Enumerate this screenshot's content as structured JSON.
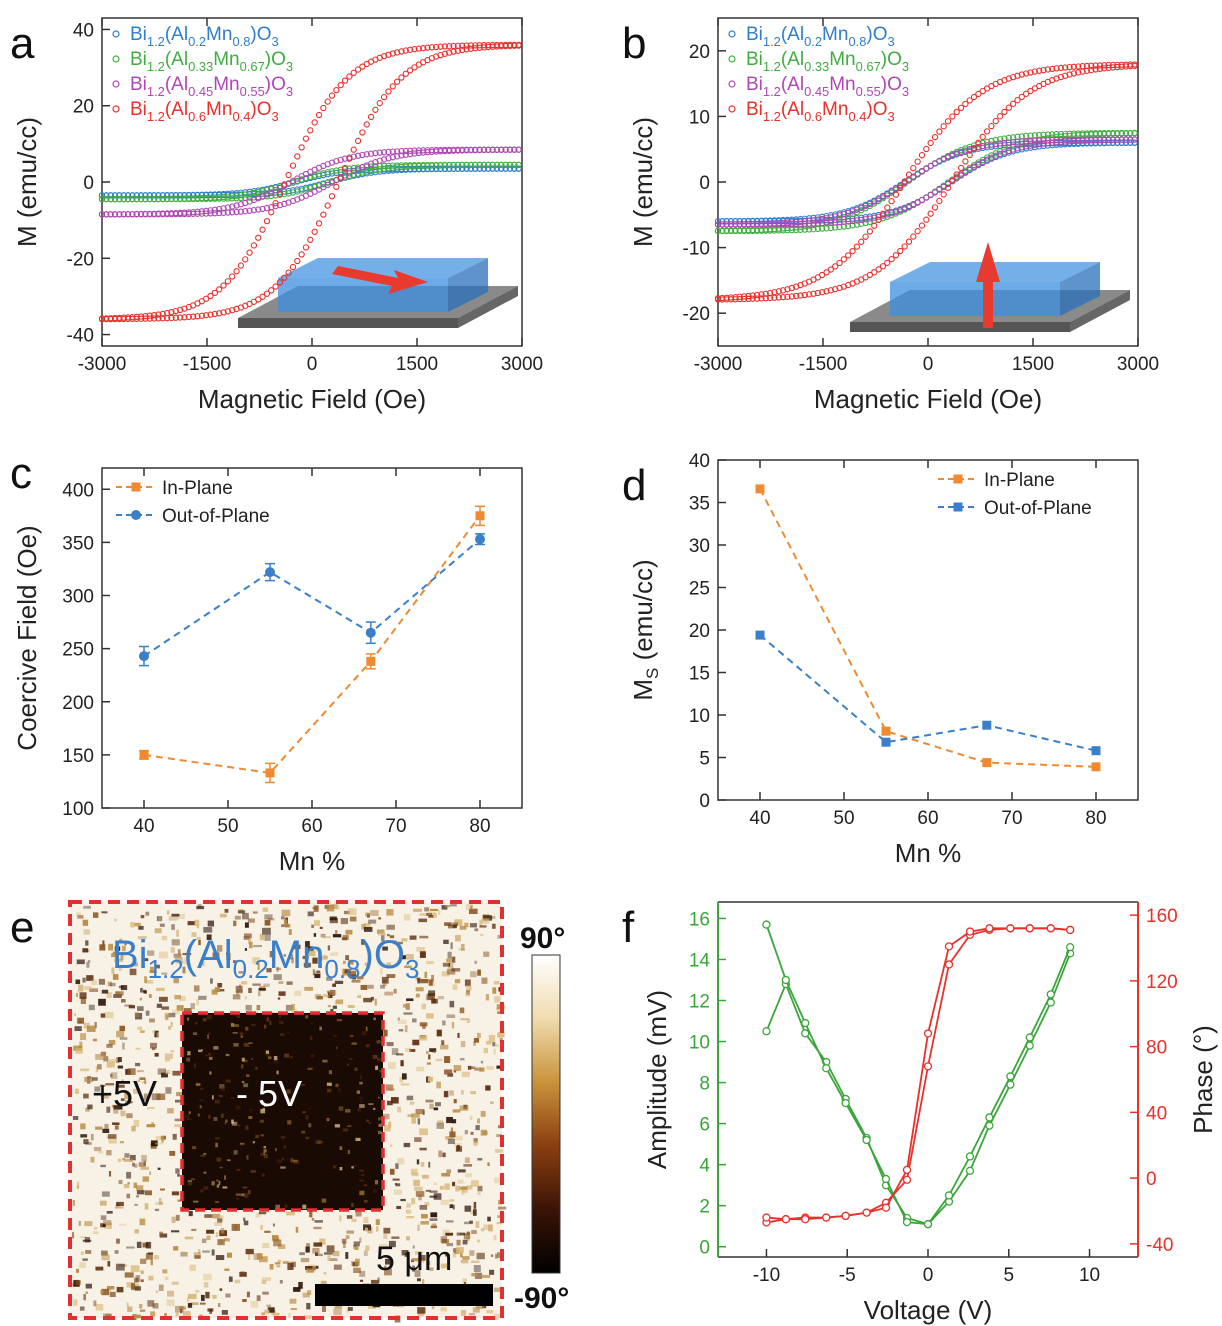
{
  "figure": {
    "panel_letters": [
      "a",
      "b",
      "c",
      "d",
      "e",
      "f"
    ]
  },
  "colors": {
    "blue": "#2f7ec9",
    "green": "#3fae3f",
    "purple": "#b046b5",
    "red": "#e8302c",
    "orange": "#f08a30",
    "blue_line": "#3a7fc8",
    "amp_green": "#3aa63a",
    "phase_red": "#e8302c",
    "box_blue": "#3b8de0",
    "substrate": "#555555"
  },
  "chart_data": [
    {
      "panel": "a",
      "type": "scatter",
      "xlabel": "Magnetic Field (Oe)",
      "ylabel": "M (emu/cc)",
      "xlim": [
        -3000,
        3000
      ],
      "ylim": [
        -43,
        43
      ],
      "xticks": [
        -3000,
        -1500,
        0,
        1500,
        3000
      ],
      "yticks": [
        -40,
        -20,
        0,
        20,
        40
      ],
      "legend": [
        {
          "base": "Bi",
          "sub1": "1.2",
          "mid1": "(Al",
          "sub2": "0.2",
          "mid2": "Mn",
          "sub3": "0.8",
          "mid3": ")O",
          "sub4": "3",
          "color": "blue"
        },
        {
          "base": "Bi",
          "sub1": "1.2",
          "mid1": "(Al",
          "sub2": "0.33",
          "mid2": "Mn",
          "sub3": "0.67",
          "mid3": ")O",
          "sub4": "3",
          "color": "green"
        },
        {
          "base": "Bi",
          "sub1": "1.2",
          "mid1": "(Al",
          "sub2": "0.45",
          "mid2": "Mn",
          "sub3": "0.55",
          "mid3": ")O",
          "sub4": "3",
          "color": "purple"
        },
        {
          "base": "Bi",
          "sub1": "1.2",
          "mid1": "(Al",
          "sub2": "0.6",
          "mid2": "Mn",
          "sub3": "0.4",
          "mid3": ")O",
          "sub4": "3",
          "color": "red"
        }
      ],
      "series": [
        {
          "color": "blue",
          "ms": 3.5,
          "hc": 240,
          "w": 700
        },
        {
          "color": "green",
          "ms": 4.5,
          "hc": 260,
          "w": 750
        },
        {
          "color": "purple",
          "ms": 8.5,
          "hc": 300,
          "w": 850
        },
        {
          "color": "red",
          "ms": 36,
          "hc": 380,
          "w": 900
        }
      ],
      "inset": {
        "arrow": "in-plane"
      }
    },
    {
      "panel": "b",
      "type": "scatter",
      "xlabel": "Magnetic Field (Oe)",
      "ylabel": "M (emu/cc)",
      "xlim": [
        -3000,
        3000
      ],
      "ylim": [
        -25,
        25
      ],
      "xticks": [
        -3000,
        -1500,
        0,
        1500,
        3000
      ],
      "yticks": [
        -20,
        -10,
        0,
        10,
        20
      ],
      "legend": [
        {
          "base": "Bi",
          "sub1": "1.2",
          "mid1": "(Al",
          "sub2": "0.2",
          "mid2": "Mn",
          "sub3": "0.8",
          "mid3": ")O",
          "sub4": "3",
          "color": "blue"
        },
        {
          "base": "Bi",
          "sub1": "1.2",
          "mid1": "(Al",
          "sub2": "0.33",
          "mid2": "Mn",
          "sub3": "0.67",
          "mid3": ")O",
          "sub4": "3",
          "color": "green"
        },
        {
          "base": "Bi",
          "sub1": "1.2",
          "mid1": "(Al",
          "sub2": "0.45",
          "mid2": "Mn",
          "sub3": "0.55",
          "mid3": ")O",
          "sub4": "3",
          "color": "purple"
        },
        {
          "base": "Bi",
          "sub1": "1.2",
          "mid1": "(Al",
          "sub2": "0.6",
          "mid2": "Mn",
          "sub3": "0.4",
          "mid3": ")O",
          "sub4": "3",
          "color": "red"
        }
      ],
      "series": [
        {
          "color": "blue",
          "ms": 6,
          "hc": 330,
          "w": 850
        },
        {
          "color": "green",
          "ms": 7.5,
          "hc": 300,
          "w": 1000
        },
        {
          "color": "purple",
          "ms": 6.5,
          "hc": 320,
          "w": 900
        },
        {
          "color": "red",
          "ms": 18,
          "hc": 340,
          "w": 1100
        }
      ],
      "inset": {
        "arrow": "out-of-plane"
      }
    },
    {
      "panel": "c",
      "type": "line",
      "xlabel": "Mn %",
      "ylabel": "Coercive Field (Oe)",
      "xlim": [
        35,
        85
      ],
      "ylim": [
        100,
        420
      ],
      "xticks": [
        40,
        50,
        60,
        70,
        80
      ],
      "yticks": [
        100,
        150,
        200,
        250,
        300,
        350,
        400
      ],
      "legend_position": "top-left",
      "series": [
        {
          "name": "In-Plane",
          "color": "orange",
          "marker": "square",
          "x": [
            40,
            55,
            67,
            80
          ],
          "y": [
            150,
            133,
            238,
            375
          ],
          "err": [
            4,
            9,
            7,
            9
          ]
        },
        {
          "name": "Out-of-Plane",
          "color": "blue_line",
          "marker": "circle",
          "x": [
            40,
            55,
            67,
            80
          ],
          "y": [
            243,
            322,
            265,
            353
          ],
          "err": [
            9,
            8,
            10,
            5
          ]
        }
      ]
    },
    {
      "panel": "d",
      "type": "line",
      "xlabel": "Mn %",
      "ylabel_main": "M",
      "ylabel_sub": "S",
      "ylabel_unit": " (emu/cc)",
      "xlim": [
        35,
        85
      ],
      "ylim": [
        0,
        40
      ],
      "xticks": [
        40,
        50,
        60,
        70,
        80
      ],
      "yticks": [
        0,
        5,
        10,
        15,
        20,
        25,
        30,
        35,
        40
      ],
      "legend_position": "top-right",
      "series": [
        {
          "name": "In-Plane",
          "color": "orange",
          "marker": "square",
          "x": [
            40,
            55,
            67,
            80
          ],
          "y": [
            36.6,
            8.1,
            4.4,
            3.9
          ]
        },
        {
          "name": "Out-of-Plane",
          "color": "blue_line",
          "marker": "square",
          "x": [
            40,
            55,
            67,
            80
          ],
          "y": [
            19.4,
            6.8,
            8.8,
            5.8
          ]
        }
      ]
    },
    {
      "panel": "e",
      "type": "heatmap",
      "title": {
        "base": "Bi",
        "sub1": "1.2",
        "mid1": "(Al",
        "sub2": "0.2",
        "mid2": "Mn",
        "sub3": "0.8",
        "mid3": ")O",
        "sub4": "3"
      },
      "colorbar_max": "90°",
      "colorbar_min": "-90°",
      "label_outer": "+5V",
      "label_inner": "- 5V",
      "scalebar": "5 μm"
    },
    {
      "panel": "f",
      "type": "line",
      "xlabel": "Voltage (V)",
      "ylabel_left": "Amplitude (mV)",
      "ylabel_right": "Phase (°)",
      "xlim": [
        -13,
        13
      ],
      "ylim_left": [
        -0.5,
        16.8
      ],
      "ylim_right": [
        -48,
        168
      ],
      "xticks": [
        -10,
        -5,
        0,
        5,
        10
      ],
      "yticks_left": [
        0,
        2,
        4,
        6,
        8,
        10,
        12,
        14,
        16
      ],
      "yticks_right": [
        -40,
        0,
        40,
        80,
        120,
        160
      ],
      "amplitude_up": {
        "x": [
          -10,
          -8.8,
          -7.6,
          -6.3,
          -5.1,
          -3.8,
          -2.6,
          -1.3,
          0,
          1.3,
          2.6,
          3.8,
          5.1,
          6.3,
          7.6,
          8.8
        ],
        "y": [
          10.5,
          12.8,
          10.4,
          9.0,
          7.2,
          5.3,
          3.0,
          1.4,
          1.1,
          2.2,
          3.7,
          5.9,
          7.9,
          9.8,
          11.9,
          14.3
        ]
      },
      "amplitude_down": {
        "x": [
          8.8,
          7.6,
          6.3,
          5.1,
          3.8,
          2.6,
          1.3,
          0,
          -1.3,
          -2.6,
          -3.8,
          -5.1,
          -6.3,
          -7.6,
          -8.8,
          -10
        ],
        "y": [
          14.6,
          12.3,
          10.2,
          8.3,
          6.3,
          4.4,
          2.5,
          1.1,
          1.2,
          3.3,
          5.2,
          7.0,
          8.7,
          10.9,
          13.0,
          15.7
        ]
      },
      "phase_up": {
        "x": [
          -10,
          -8.8,
          -7.6,
          -6.3,
          -5.1,
          -3.8,
          -2.6,
          -1.3,
          0,
          1.3,
          2.6,
          3.8,
          5.1,
          6.3,
          7.6,
          8.8
        ],
        "y": [
          -27,
          -25,
          -24,
          -24,
          -23,
          -21,
          -15,
          -1,
          68,
          130,
          148,
          151,
          152,
          152,
          152,
          151
        ]
      },
      "phase_down": {
        "x": [
          8.8,
          7.6,
          6.3,
          5.1,
          3.8,
          2.6,
          1.3,
          0,
          -1.3,
          -2.6,
          -3.8,
          -5.1,
          -6.3,
          -7.6,
          -8.8,
          -10
        ],
        "y": [
          151,
          152,
          152,
          152,
          152,
          150,
          141,
          88,
          5,
          -18,
          -21,
          -23,
          -24,
          -25,
          -25,
          -24
        ]
      }
    }
  ]
}
